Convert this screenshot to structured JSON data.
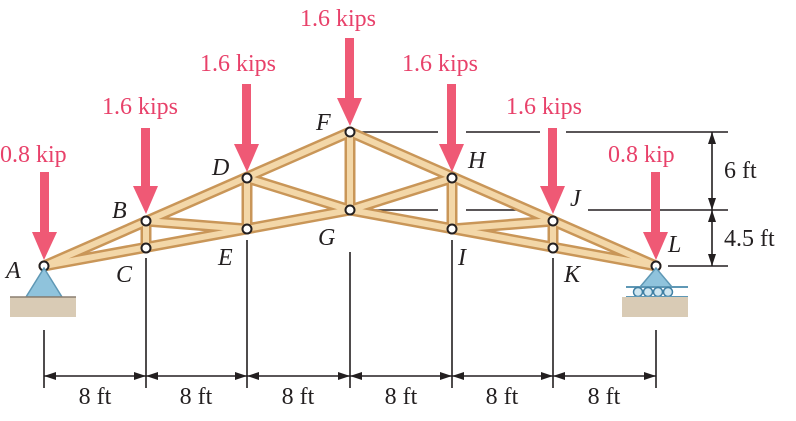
{
  "loads": [
    {
      "node": "A",
      "label": "0.8 kip"
    },
    {
      "node": "B",
      "label": "1.6 kips"
    },
    {
      "node": "D",
      "label": "1.6 kips"
    },
    {
      "node": "F",
      "label": "1.6 kips"
    },
    {
      "node": "H",
      "label": "1.6 kips"
    },
    {
      "node": "J",
      "label": "1.6 kips"
    },
    {
      "node": "L",
      "label": "0.8 kip"
    }
  ],
  "nodes": [
    "A",
    "B",
    "C",
    "D",
    "E",
    "F",
    "G",
    "H",
    "I",
    "J",
    "K",
    "L"
  ],
  "spans": [
    "8 ft",
    "8 ft",
    "8 ft",
    "8 ft",
    "8 ft",
    "8 ft"
  ],
  "heights": [
    "6 ft",
    "4.5 ft"
  ],
  "colors": {
    "load": "#e8416a",
    "arrow": "#ef5975",
    "member_edge": "#c99658",
    "member_fill": "#f3d7a8",
    "support": "#8fc3dc",
    "ground": "#d9cbb5",
    "ink": "#231f20"
  }
}
